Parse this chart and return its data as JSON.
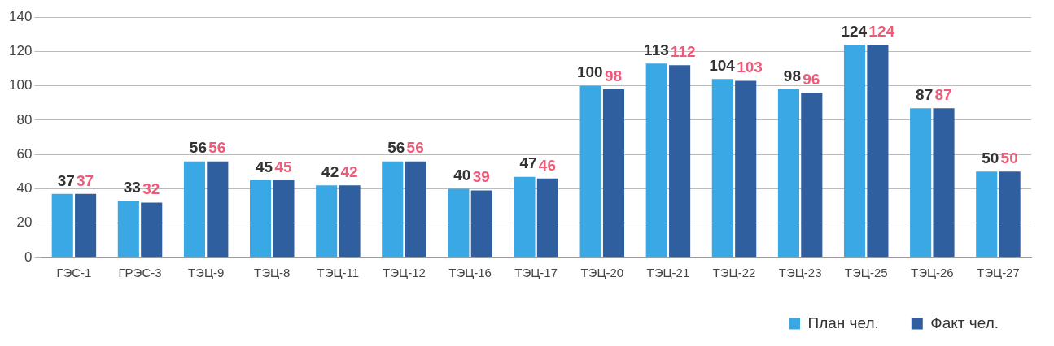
{
  "chart_data": {
    "type": "bar",
    "categories": [
      "ГЭС-1",
      "ГРЭС-3",
      "ТЭЦ-9",
      "ТЭЦ-8",
      "ТЭЦ-11",
      "ТЭЦ-12",
      "ТЭЦ-16",
      "ТЭЦ-17",
      "ТЭЦ-20",
      "ТЭЦ-21",
      "ТЭЦ-22",
      "ТЭЦ-23",
      "ТЭЦ-25",
      "ТЭЦ-26",
      "ТЭЦ-27"
    ],
    "series": [
      {
        "name": "План чел.",
        "color": "#3aa8e4",
        "values": [
          37,
          33,
          56,
          45,
          42,
          56,
          40,
          47,
          100,
          113,
          104,
          98,
          124,
          87,
          50
        ]
      },
      {
        "name": "Факт чел.",
        "color": "#2f5f9e",
        "values": [
          37,
          32,
          56,
          45,
          42,
          56,
          39,
          46,
          98,
          112,
          103,
          96,
          124,
          87,
          50
        ]
      }
    ],
    "ylim": [
      0,
      140
    ],
    "yticks": [
      0,
      20,
      40,
      60,
      80,
      100,
      120,
      140
    ],
    "grid": "y",
    "legend": "bottom right",
    "data_labels": true
  }
}
